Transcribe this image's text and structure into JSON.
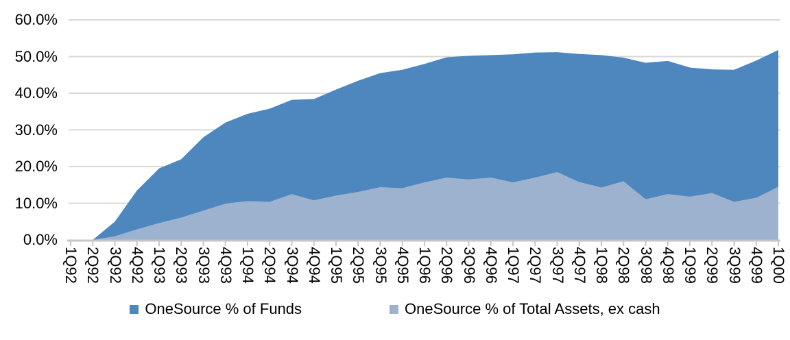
{
  "chart_data": {
    "type": "area",
    "stacked": false,
    "title": "",
    "xlabel": "",
    "ylabel": "",
    "ylim": [
      0,
      60
    ],
    "y_tick_step": 10,
    "y_ticks": [
      "60.0%",
      "50.0%",
      "40.0%",
      "30.0%",
      "20.0%",
      "10.0%",
      "0.0%"
    ],
    "grid": true,
    "grid_color": "#d9d9d9",
    "axis_color": "#c6c6c6",
    "legend_position": "bottom",
    "categories": [
      "1Q92",
      "2Q92",
      "3Q92",
      "4Q92",
      "1Q93",
      "2Q93",
      "3Q93",
      "4Q93",
      "1Q94",
      "2Q94",
      "3Q94",
      "4Q94",
      "1Q95",
      "2Q95",
      "3Q95",
      "4Q95",
      "1Q96",
      "2Q96",
      "3Q96",
      "4Q96",
      "1Q97",
      "2Q97",
      "3Q97",
      "4Q97",
      "1Q98",
      "2Q98",
      "3Q98",
      "4Q98",
      "1Q99",
      "2Q99",
      "3Q99",
      "4Q99",
      "1Q00"
    ],
    "series": [
      {
        "name": "OneSource % of Funds",
        "color": "#4e87be",
        "values": [
          0.0,
          0.0,
          5.0,
          13.5,
          19.5,
          22.0,
          28.0,
          32.0,
          34.4,
          35.8,
          38.2,
          38.4,
          41.0,
          43.4,
          45.5,
          46.4,
          48.0,
          49.8,
          50.2,
          50.4,
          50.6,
          51.1,
          51.2,
          50.7,
          50.4,
          49.7,
          48.3,
          48.8,
          47.0,
          46.5,
          46.4,
          48.9,
          51.8
        ]
      },
      {
        "name": "OneSource % of Total Assets, ex cash",
        "color": "#9db2ce",
        "values": [
          0.0,
          0.0,
          1.0,
          2.9,
          4.6,
          6.1,
          8.0,
          9.9,
          10.6,
          10.4,
          12.5,
          10.8,
          12.1,
          13.1,
          14.4,
          14.1,
          15.7,
          17.0,
          16.5,
          17.0,
          15.7,
          17.0,
          18.5,
          15.8,
          14.3,
          16.0,
          11.1,
          12.5,
          11.8,
          12.8,
          10.4,
          11.5,
          14.5
        ]
      }
    ]
  }
}
